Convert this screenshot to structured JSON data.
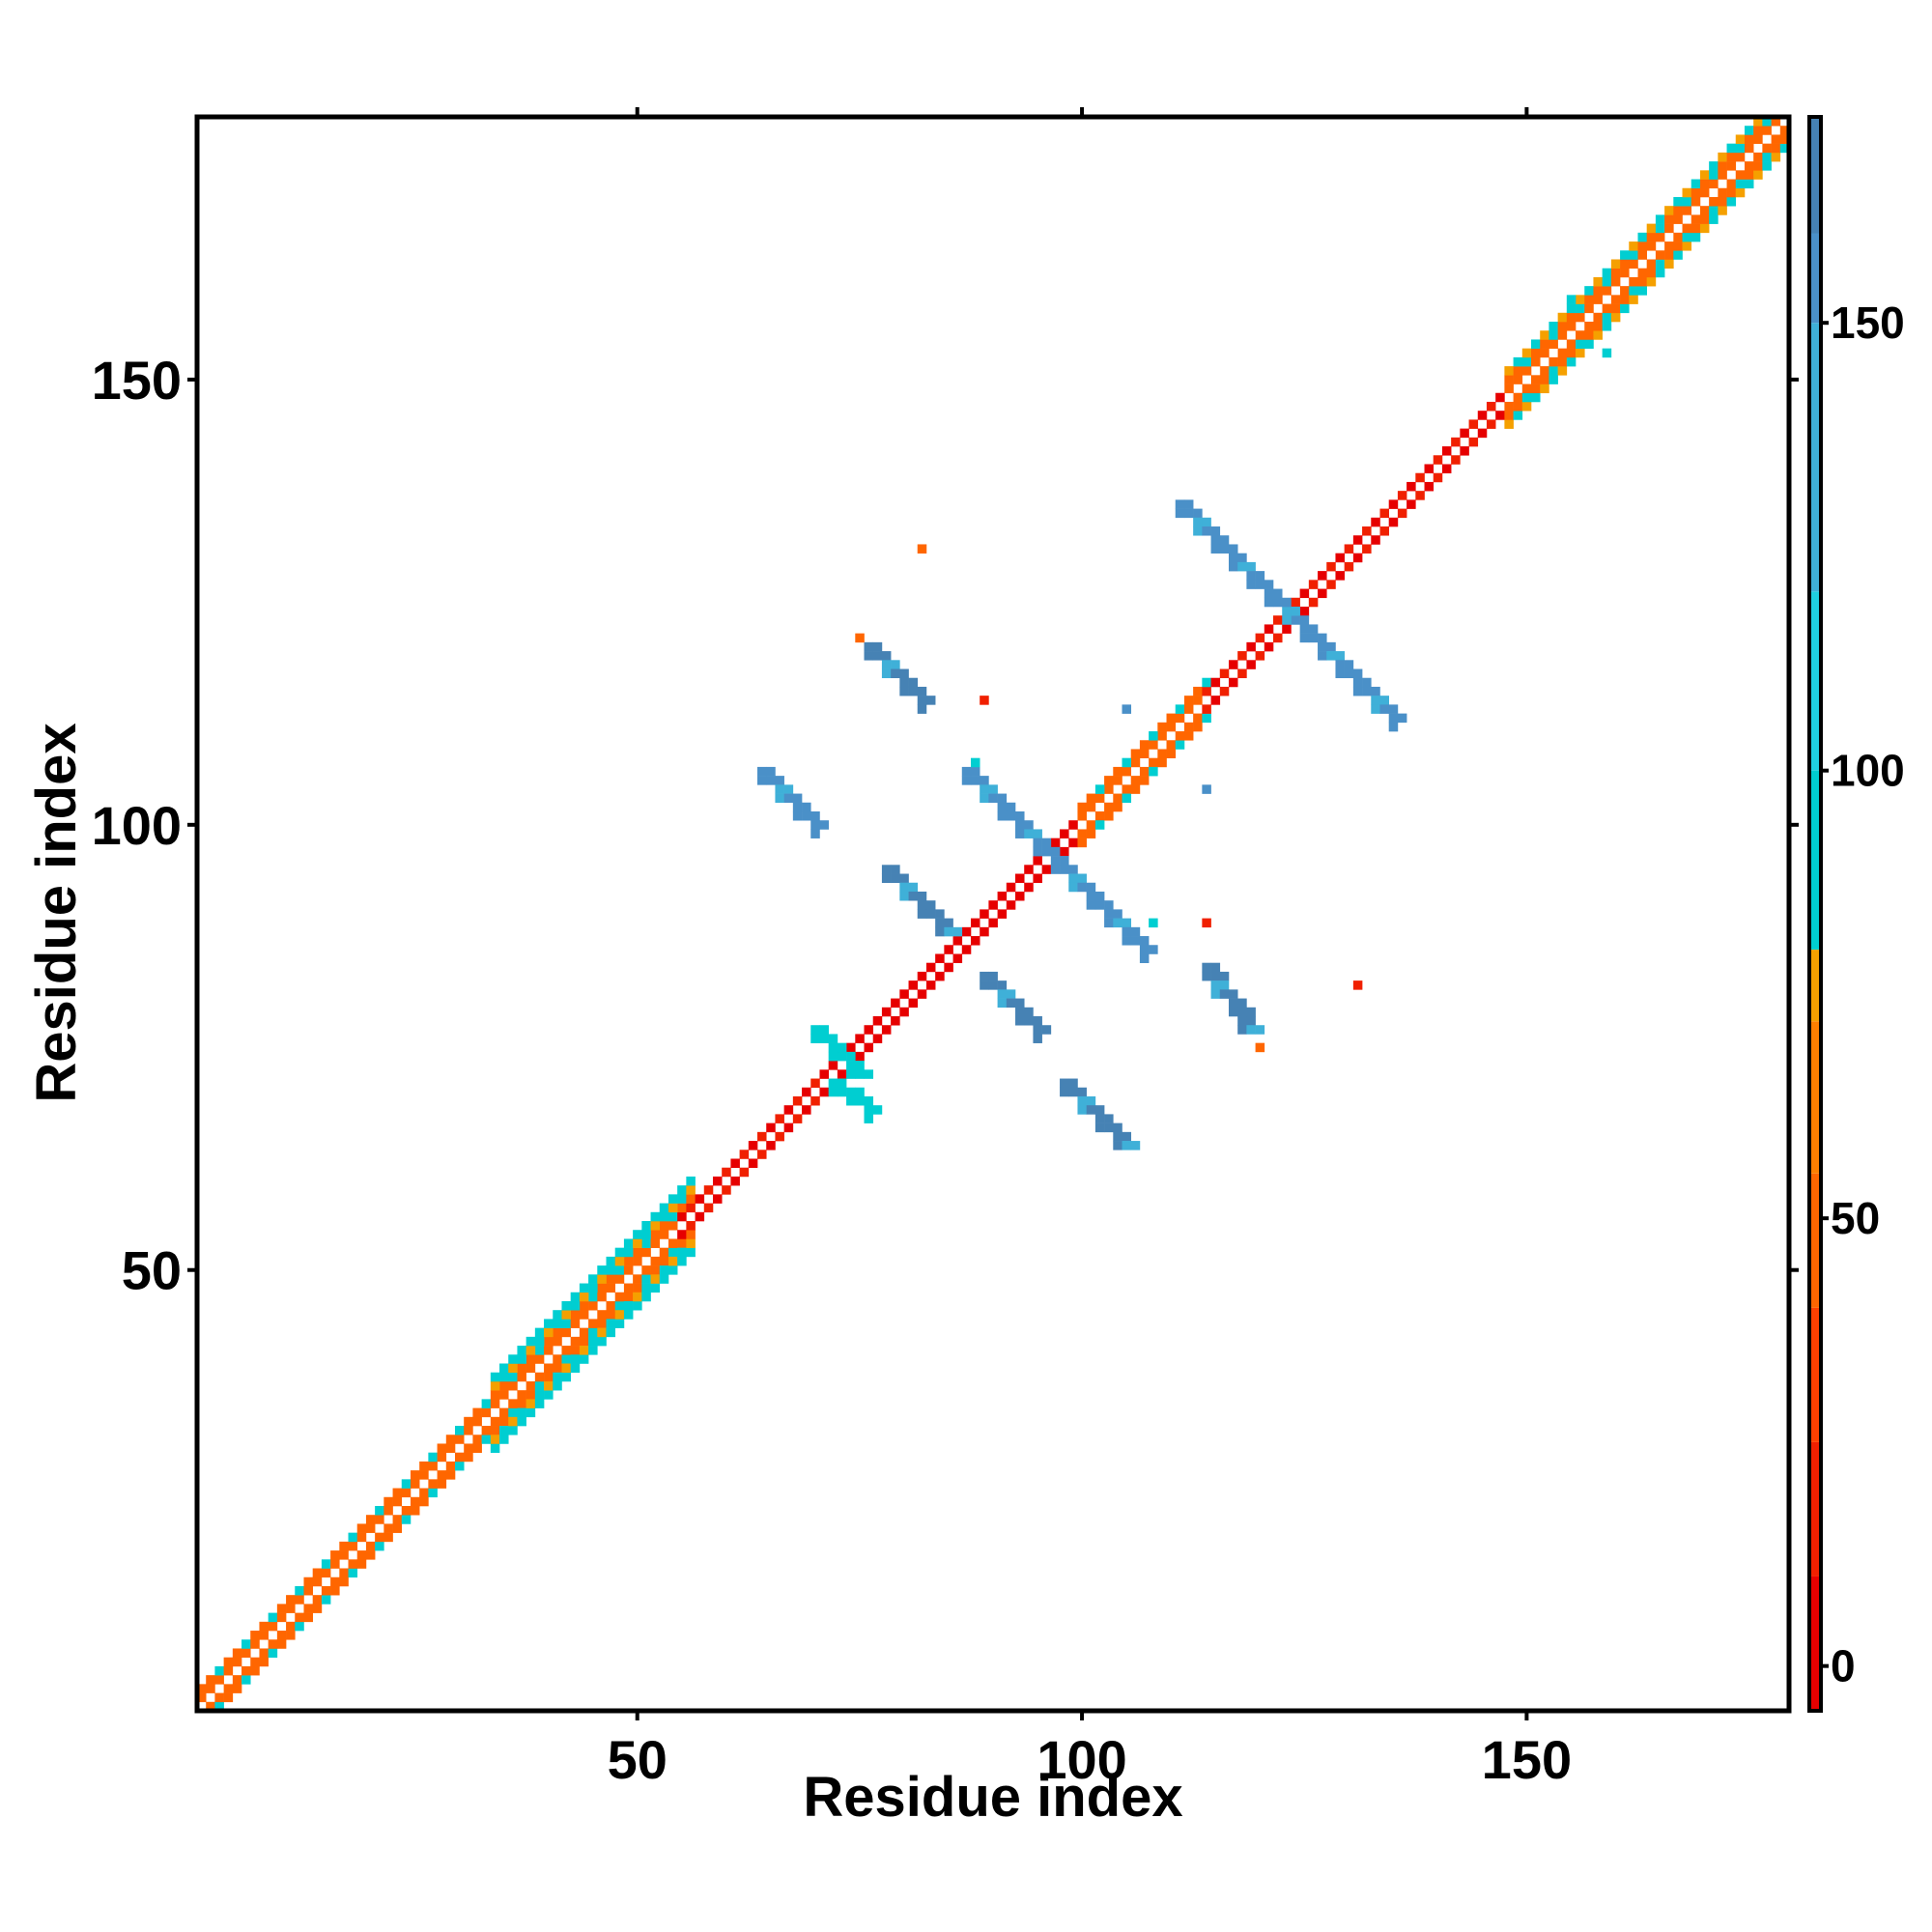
{
  "chart_data": {
    "type": "heatmap",
    "title": "",
    "xlabel": "Residue index",
    "ylabel": "Residue index",
    "xlim": [
      1,
      179
    ],
    "ylim": [
      1,
      179
    ],
    "x_ticks": [
      50,
      100,
      150
    ],
    "y_ticks": [
      50,
      100,
      150
    ],
    "colorbar": {
      "range": [
        -5,
        173
      ],
      "ticks": [
        0,
        50,
        100,
        150
      ],
      "stops": [
        {
          "value": -5,
          "color": "#e60000"
        },
        {
          "value": 10,
          "color": "#f02000"
        },
        {
          "value": 25,
          "color": "#ff4000"
        },
        {
          "value": 40,
          "color": "#ff6600"
        },
        {
          "value": 55,
          "color": "#ff7f00"
        },
        {
          "value": 72,
          "color": "#f5a000"
        },
        {
          "value": 80,
          "color": "#00ced1"
        },
        {
          "value": 100,
          "color": "#1fd0e0"
        },
        {
          "value": 120,
          "color": "#3fb0d8"
        },
        {
          "value": 150,
          "color": "#4a90c8"
        },
        {
          "value": 160,
          "color": "#4682b4"
        },
        {
          "value": 173,
          "color": "#ffffff"
        }
      ]
    },
    "diagonal_bands": [
      {
        "from": 1,
        "to": 55,
        "pattern": "orange-cyan",
        "half_width": 2
      },
      {
        "from": 34,
        "to": 56,
        "pattern": "orange-cyan",
        "half_width": 4
      },
      {
        "from": 55,
        "to": 72,
        "pattern": "red-orange",
        "half_width": 1
      },
      {
        "from": 72,
        "to": 110,
        "pattern": "red",
        "half_width": 1
      },
      {
        "from": 100,
        "to": 114,
        "pattern": "orange-cyan",
        "half_width": 2
      },
      {
        "from": 114,
        "to": 148,
        "pattern": "red-orange",
        "half_width": 1
      },
      {
        "from": 148,
        "to": 179,
        "pattern": "orange-cyan",
        "half_width": 3
      }
    ],
    "cross_strands": [
      {
        "x1": 111,
        "y1": 136,
        "x2": 135,
        "y2": 112,
        "color": "#4a90c8"
      },
      {
        "x1": 87,
        "y1": 106,
        "x2": 107,
        "y2": 86,
        "color": "#4a90c8"
      },
      {
        "x1": 76,
        "y1": 120,
        "x2": 82,
        "y2": 114,
        "color": "#4682b4"
      },
      {
        "x1": 64,
        "y1": 106,
        "x2": 70,
        "y2": 100,
        "color": "#4a90c8"
      },
      {
        "x1": 78,
        "y1": 95,
        "x2": 85,
        "y2": 88,
        "color": "#4682b4"
      },
      {
        "x1": 89,
        "y1": 83,
        "x2": 95,
        "y2": 77,
        "color": "#4682b4"
      },
      {
        "x1": 114,
        "y1": 84,
        "x2": 119,
        "y2": 77,
        "color": "#4682b4"
      },
      {
        "x1": 98,
        "y1": 71,
        "x2": 105,
        "y2": 64,
        "color": "#4682b4"
      },
      {
        "x1": 70,
        "y1": 77,
        "x2": 75,
        "y2": 72,
        "color": "#00ced1"
      },
      {
        "x1": 72,
        "y1": 71,
        "x2": 76,
        "y2": 68,
        "color": "#00ced1"
      }
    ],
    "isolated_points": [
      {
        "x": 82,
        "y": 131,
        "value": 40
      },
      {
        "x": 89,
        "y": 114,
        "value": 20
      },
      {
        "x": 105,
        "y": 113,
        "value": 150
      },
      {
        "x": 114,
        "y": 104,
        "value": 150
      },
      {
        "x": 88,
        "y": 107,
        "value": 90
      },
      {
        "x": 114,
        "y": 89,
        "value": 20
      },
      {
        "x": 131,
        "y": 82,
        "value": 20
      },
      {
        "x": 120,
        "y": 75,
        "value": 50
      },
      {
        "x": 75,
        "y": 121,
        "value": 50
      },
      {
        "x": 108,
        "y": 89,
        "value": 90
      },
      {
        "x": 159,
        "y": 153,
        "value": 90
      },
      {
        "x": 155,
        "y": 159,
        "value": 90
      }
    ]
  }
}
